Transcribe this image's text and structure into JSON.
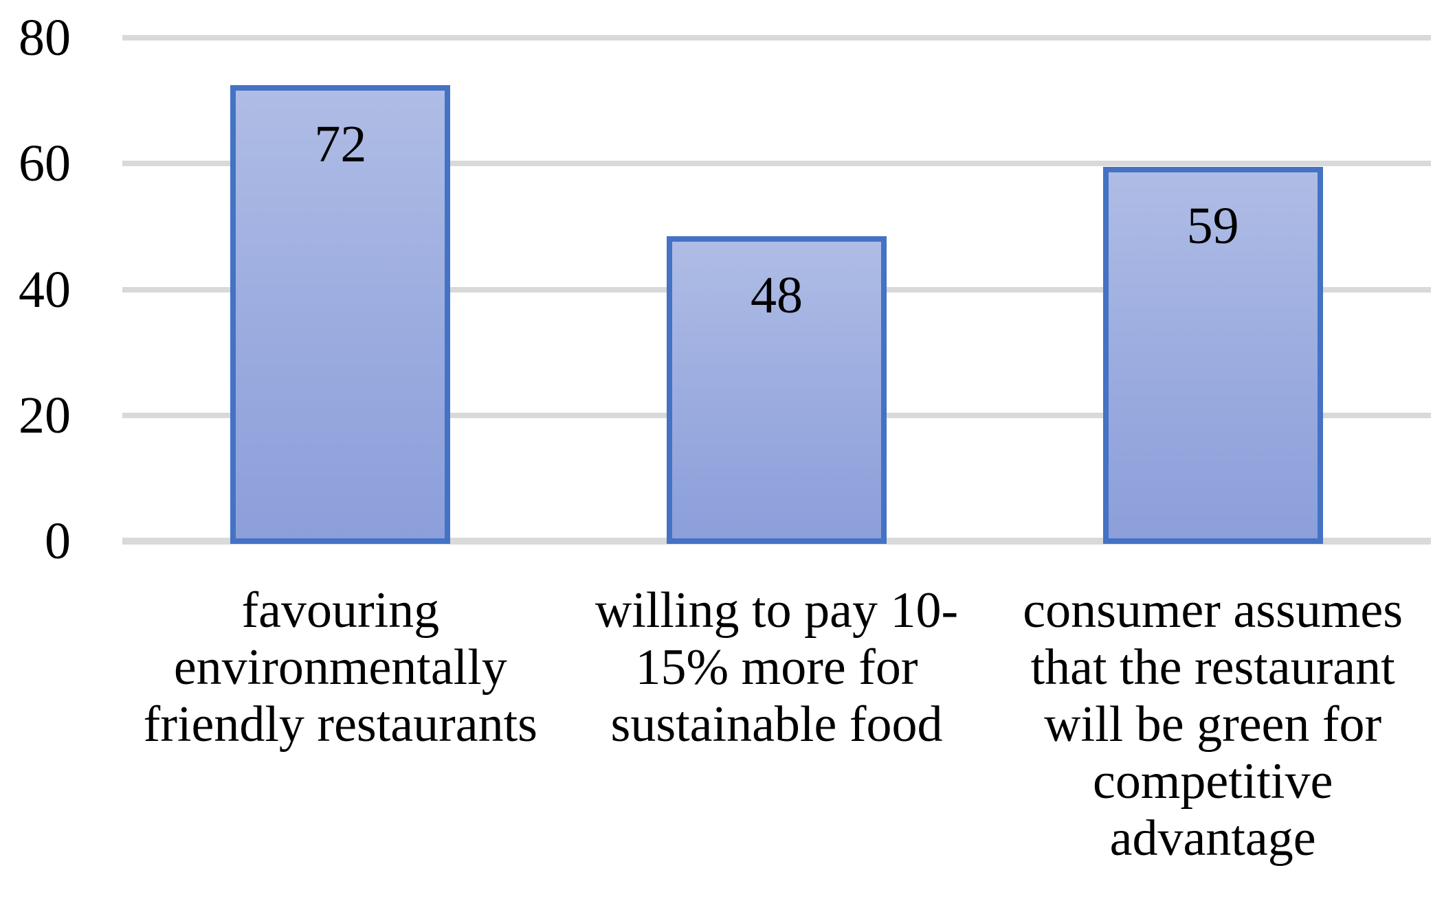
{
  "chart_data": {
    "type": "bar",
    "title": "",
    "xlabel": "",
    "ylabel": "",
    "categories": [
      "favouring\nenvironmentally\nfriendly restaurants",
      "willing to pay 10-\n15% more for\nsustainable food",
      "consumer assumes\nthat the restaurant\nwill be green for\ncompetitive\nadvantage"
    ],
    "values": [
      72,
      48,
      59
    ],
    "data_labels": [
      "72",
      "48",
      "59"
    ],
    "y_ticks": [
      0,
      20,
      40,
      60,
      80
    ],
    "y_tick_labels": [
      "0",
      "20",
      "40",
      "60",
      "80"
    ],
    "ylim": [
      0,
      80
    ],
    "grid": true,
    "legend_position": "none",
    "colors": {
      "bar_fill_top": "#AFBCE5",
      "bar_fill_bottom": "#8C9FDA",
      "bar_border": "#4472C4",
      "gridline": "#D9D9D9",
      "text": "#000000",
      "background": "#FFFFFF"
    }
  }
}
